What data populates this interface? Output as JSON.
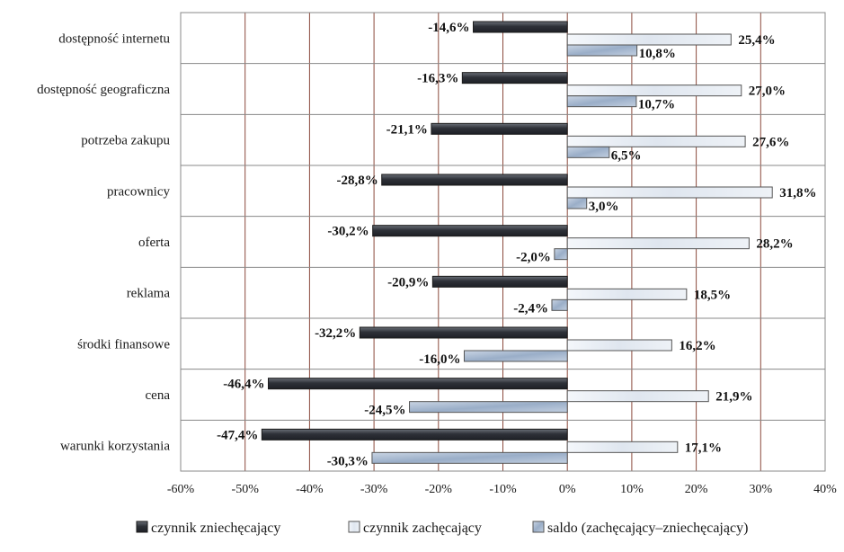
{
  "chart_data": {
    "type": "bar",
    "orientation": "horizontal",
    "categories": [
      "dostępność internetu",
      "dostępność geograficzna",
      "potrzeba zakupu",
      "pracownicy",
      "oferta",
      "reklama",
      "środki finansowe",
      "cena",
      "warunki korzystania"
    ],
    "series": [
      {
        "name": "czynnik zniechęcający",
        "values": [
          -14.6,
          -16.3,
          -21.1,
          -28.8,
          -30.2,
          -20.9,
          -32.2,
          -46.4,
          -47.4
        ],
        "labels": [
          "-14,6%",
          "-16,3%",
          "-21,1%",
          "-28,8%",
          "-30,2%",
          "-20,9%",
          "-32,2%",
          "-46,4%",
          "-47,4%"
        ]
      },
      {
        "name": "czynnik zachęcający",
        "values": [
          25.4,
          27.0,
          27.6,
          31.8,
          28.2,
          18.5,
          16.2,
          21.9,
          17.1
        ],
        "labels": [
          "25,4%",
          "27,0%",
          "27,6%",
          "31,8%",
          "28,2%",
          "18,5%",
          "16,2%",
          "21,9%",
          "17,1%"
        ]
      },
      {
        "name": "saldo (zachęcający–zniechęcający)",
        "values": [
          10.8,
          10.7,
          6.5,
          3.0,
          -2.0,
          -2.4,
          -16.0,
          -24.5,
          -30.3
        ],
        "labels": [
          "10,8%",
          "10,7%",
          "6,5%",
          "3,0%",
          "-2,0%",
          "-2,4%",
          "-16,0%",
          "-24,5%",
          "-30,3%"
        ]
      }
    ],
    "xlim": [
      -60,
      40
    ],
    "xticks": [
      -60,
      -50,
      -40,
      -30,
      -20,
      -10,
      0,
      10,
      20,
      30,
      40
    ],
    "xtick_labels": [
      "-60%",
      "-50%",
      "-40%",
      "-30%",
      "-20%",
      "-10%",
      "0%",
      "10%",
      "20%",
      "30%",
      "40%"
    ],
    "grid": true,
    "legend_position": "bottom",
    "colors": {
      "discouraging": "#3a3d44",
      "encouraging": "#e4eaf2",
      "balance": "#a9b9cf",
      "gridline": "#8b4a3c",
      "frame": "#888888"
    }
  }
}
